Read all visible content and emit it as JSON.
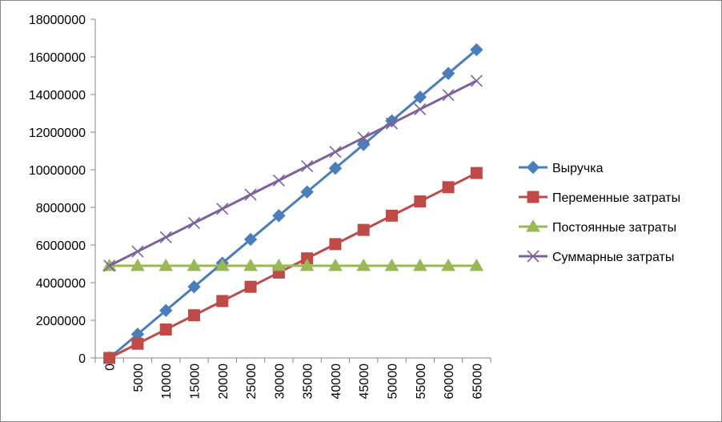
{
  "chart_data": {
    "type": "line",
    "title": "",
    "xlabel": "",
    "ylabel": "",
    "x": [
      0,
      5000,
      10000,
      15000,
      20000,
      25000,
      30000,
      35000,
      40000,
      45000,
      50000,
      55000,
      60000,
      65000
    ],
    "ylim": [
      0,
      18000000
    ],
    "yticks": [
      0,
      2000000,
      4000000,
      6000000,
      8000000,
      10000000,
      12000000,
      14000000,
      16000000,
      18000000
    ],
    "grid": false,
    "legend_position": "right",
    "series": [
      {
        "name": "Выручка",
        "color": "#4A7EBB",
        "marker": "diamond",
        "values": [
          0,
          1260000,
          2520000,
          3780000,
          5040000,
          6300000,
          7560000,
          8820000,
          10080000,
          11340000,
          12600000,
          13860000,
          15120000,
          16380000
        ]
      },
      {
        "name": "Переменные затраты",
        "color": "#BE4B48",
        "marker": "square",
        "values": [
          0,
          756000,
          1512000,
          2268000,
          3024000,
          3780000,
          4536000,
          5292000,
          6048000,
          6804000,
          7560000,
          8316000,
          9072000,
          9828000
        ]
      },
      {
        "name": "Постоянные затраты",
        "color": "#98B954",
        "marker": "triangle",
        "values": [
          4900000,
          4900000,
          4900000,
          4900000,
          4900000,
          4900000,
          4900000,
          4900000,
          4900000,
          4900000,
          4900000,
          4900000,
          4900000,
          4900000
        ]
      },
      {
        "name": "Суммарные затраты",
        "color": "#7D60A0",
        "marker": "x",
        "values": [
          4900000,
          5656000,
          6412000,
          7168000,
          7924000,
          8680000,
          9436000,
          10192000,
          10948000,
          11704000,
          12460000,
          13216000,
          13972000,
          14728000
        ]
      }
    ]
  }
}
